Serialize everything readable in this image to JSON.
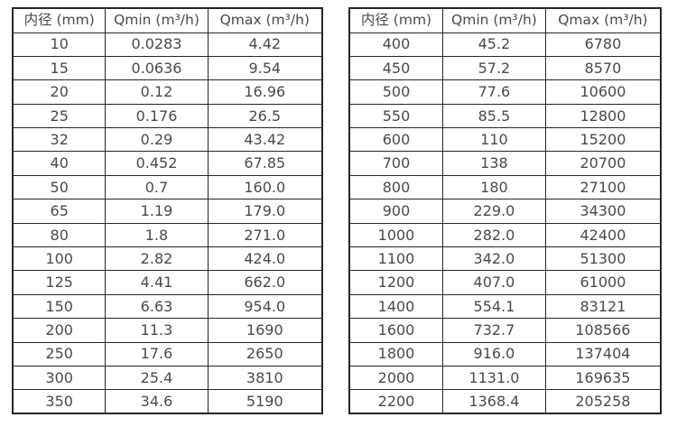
{
  "colors": {
    "text": "#4a4a4a",
    "border": "#262626",
    "background": "#ffffff"
  },
  "chart_data": [
    {
      "type": "table",
      "columns": [
        "内径 (mm)",
        "Qmin (m³/h)",
        "Qmax (m³/h)"
      ],
      "rows": [
        [
          "10",
          "0.0283",
          "4.42"
        ],
        [
          "15",
          "0.0636",
          "9.54"
        ],
        [
          "20",
          "0.12",
          "16.96"
        ],
        [
          "25",
          "0.176",
          "26.5"
        ],
        [
          "32",
          "0.29",
          "43.42"
        ],
        [
          "40",
          "0.452",
          "67.85"
        ],
        [
          "50",
          "0.7",
          "160.0"
        ],
        [
          "65",
          "1.19",
          "179.0"
        ],
        [
          "80",
          "1.8",
          "271.0"
        ],
        [
          "100",
          "2.82",
          "424.0"
        ],
        [
          "125",
          "4.41",
          "662.0"
        ],
        [
          "150",
          "6.63",
          "954.0"
        ],
        [
          "200",
          "11.3",
          "1690"
        ],
        [
          "250",
          "17.6",
          "2650"
        ],
        [
          "300",
          "25.4",
          "3810"
        ],
        [
          "350",
          "34.6",
          "5190"
        ]
      ]
    },
    {
      "type": "table",
      "columns": [
        "内径 (mm)",
        "Qmin (m³/h)",
        "Qmax (m³/h)"
      ],
      "rows": [
        [
          "400",
          "45.2",
          "6780"
        ],
        [
          "450",
          "57.2",
          "8570"
        ],
        [
          "500",
          "77.6",
          "10600"
        ],
        [
          "550",
          "85.5",
          "12800"
        ],
        [
          "600",
          "110",
          "15200"
        ],
        [
          "700",
          "138",
          "20700"
        ],
        [
          "800",
          "180",
          "27100"
        ],
        [
          "900",
          "229.0",
          "34300"
        ],
        [
          "1000",
          "282.0",
          "42400"
        ],
        [
          "1100",
          "342.0",
          "51300"
        ],
        [
          "1200",
          "407.0",
          "61000"
        ],
        [
          "1400",
          "554.1",
          "83121"
        ],
        [
          "1600",
          "732.7",
          "108566"
        ],
        [
          "1800",
          "916.0",
          "137404"
        ],
        [
          "2000",
          "1131.0",
          "169635"
        ],
        [
          "2200",
          "1368.4",
          "205258"
        ]
      ]
    }
  ]
}
